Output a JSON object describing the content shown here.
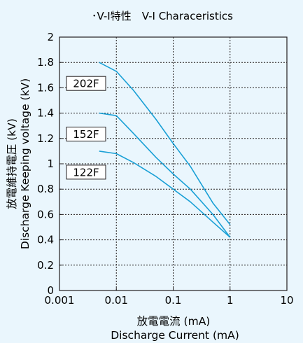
{
  "chart_data": {
    "type": "line",
    "title": "･V-I特性　V-I Characeristics",
    "xlabel_jp": "放電電流 (mA)",
    "xlabel_en": "Discharge Current (mA)",
    "ylabel_jp": "放電維持電圧 (kV)",
    "ylabel_en": "Discharge Keeping voltage (kV)",
    "x_scale": "log",
    "xlim": [
      0.001,
      10
    ],
    "ylim": [
      0,
      2
    ],
    "x_ticks": [
      0.001,
      0.01,
      0.1,
      1,
      10
    ],
    "x_tick_labels": [
      "0.001",
      "0.01",
      "0.1",
      "1",
      "10"
    ],
    "y_ticks": [
      0,
      0.2,
      0.4,
      0.6,
      0.8,
      1,
      1.2,
      1.4,
      1.6,
      1.8,
      2
    ],
    "y_tick_labels": [
      "0",
      "0.2",
      "0.4",
      "0.6",
      "0.8",
      "1",
      "1.2",
      "1.4",
      "1.6",
      "1.8",
      "2"
    ],
    "grid": true,
    "line_color": "#1aa0d6",
    "series": [
      {
        "name": "202F",
        "x": [
          0.005,
          0.01,
          0.02,
          0.05,
          0.1,
          0.2,
          0.5,
          1
        ],
        "y": [
          1.8,
          1.73,
          1.58,
          1.35,
          1.16,
          0.98,
          0.69,
          0.52
        ]
      },
      {
        "name": "152F",
        "x": [
          0.005,
          0.01,
          0.02,
          0.05,
          0.1,
          0.2,
          0.5,
          1
        ],
        "y": [
          1.4,
          1.38,
          1.24,
          1.05,
          0.92,
          0.8,
          0.6,
          0.42
        ]
      },
      {
        "name": "122F",
        "x": [
          0.005,
          0.01,
          0.02,
          0.05,
          0.1,
          0.2,
          0.5,
          1
        ],
        "y": [
          1.1,
          1.08,
          1.01,
          0.9,
          0.8,
          0.7,
          0.54,
          0.42
        ]
      }
    ]
  }
}
